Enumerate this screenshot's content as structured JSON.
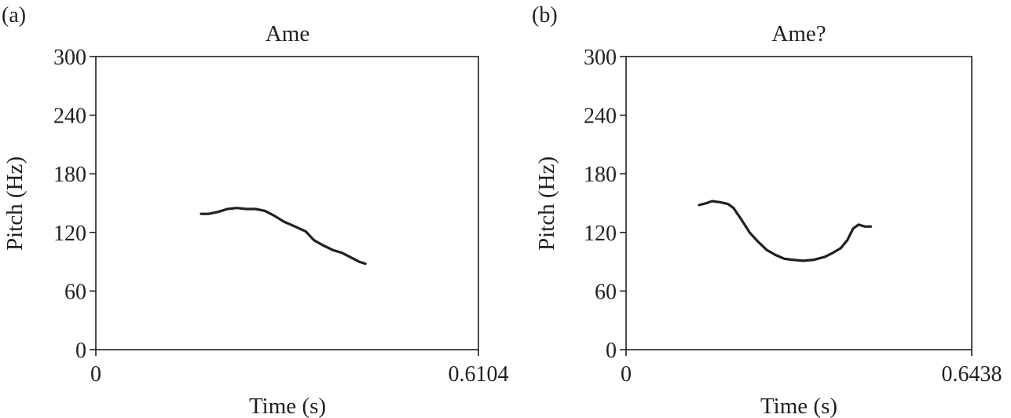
{
  "chart_data": [
    {
      "panel": "(a)",
      "type": "line",
      "title": "Ame",
      "xlabel": "Time (s)",
      "ylabel": "Pitch (Hz)",
      "xlim": [
        0,
        0.6104
      ],
      "ylim": [
        0,
        300
      ],
      "yticks": [
        0,
        60,
        120,
        180,
        240,
        300
      ],
      "xtick_labels": [
        "0",
        "0.6104"
      ],
      "grid": false,
      "series": [
        {
          "x": [
            0.168,
            0.18,
            0.195,
            0.21,
            0.225,
            0.24,
            0.255,
            0.27,
            0.285,
            0.3,
            0.318,
            0.335,
            0.348,
            0.362,
            0.378,
            0.393,
            0.408,
            0.42,
            0.43
          ],
          "y": [
            139,
            139,
            141,
            144,
            145,
            144,
            144,
            142,
            137,
            131,
            126,
            121,
            112,
            107,
            102,
            99,
            94,
            90,
            88
          ]
        }
      ]
    },
    {
      "panel": "(b)",
      "type": "line",
      "title": "Ame?",
      "xlabel": "Time (s)",
      "ylabel": "Pitch (Hz)",
      "xlim": [
        0,
        0.6438
      ],
      "ylim": [
        0,
        300
      ],
      "yticks": [
        0,
        60,
        120,
        180,
        240,
        300
      ],
      "xtick_labels": [
        "0",
        "0.6438"
      ],
      "grid": false,
      "series": [
        {
          "x": [
            0.136,
            0.15,
            0.16,
            0.175,
            0.19,
            0.2,
            0.215,
            0.23,
            0.245,
            0.262,
            0.278,
            0.295,
            0.31,
            0.33,
            0.35,
            0.37,
            0.385,
            0.4,
            0.412,
            0.423,
            0.433,
            0.445,
            0.456
          ],
          "y": [
            148,
            150,
            152,
            151,
            149,
            145,
            133,
            120,
            111,
            102,
            97,
            93,
            92,
            91,
            92,
            95,
            99,
            104,
            112,
            124,
            128,
            126,
            126
          ]
        }
      ]
    }
  ]
}
